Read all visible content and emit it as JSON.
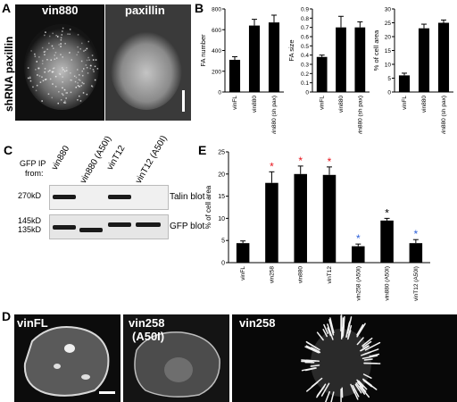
{
  "panels": {
    "A": {
      "letter": "A",
      "side_label": "shRNA paxillin",
      "image_labels": [
        "vin880",
        "paxillin"
      ]
    },
    "B": {
      "letter": "B"
    },
    "C": {
      "letter": "C",
      "ip_label_line1": "GFP IP",
      "ip_label_line2": "from:",
      "lanes": [
        "vin880",
        "vin880 (A50I)",
        "vinT12",
        "vinT12 (A50I)"
      ],
      "mw_markers": [
        "270kD",
        "145kD",
        "135kD"
      ],
      "blots": [
        "Talin blot",
        "GFP blot"
      ]
    },
    "D": {
      "letter": "D",
      "image_labels": [
        "vinFL",
        "vin258",
        "(A50I)",
        "vin258"
      ]
    },
    "E": {
      "letter": "E"
    }
  },
  "chart_data": [
    {
      "id": "B1",
      "type": "bar",
      "categories": [
        "vinFL",
        "vin880",
        "vin880 (sh pax)"
      ],
      "values": [
        310,
        640,
        670
      ],
      "errors": [
        30,
        60,
        70
      ],
      "ylabel": "FA number",
      "ylim": [
        0,
        800
      ],
      "yticks": [
        0,
        200,
        400,
        600,
        800
      ]
    },
    {
      "id": "B2",
      "type": "bar",
      "categories": [
        "vinFL",
        "vin880",
        "vin880 (sh pax)"
      ],
      "values": [
        0.38,
        0.7,
        0.7
      ],
      "errors": [
        0.02,
        0.12,
        0.06
      ],
      "ylabel": "FA size",
      "ylim": [
        0,
        0.9
      ],
      "yticks": [
        0,
        0.1,
        0.2,
        0.3,
        0.4,
        0.5,
        0.6,
        0.7,
        0.8,
        0.9
      ]
    },
    {
      "id": "B3",
      "type": "bar",
      "categories": [
        "vinFL",
        "vin880",
        "vin880 (sh pax)"
      ],
      "values": [
        6,
        23,
        25
      ],
      "errors": [
        0.8,
        1.5,
        1.0
      ],
      "ylabel": "% of cell area",
      "ylim": [
        0,
        30
      ],
      "yticks": [
        0,
        5,
        10,
        15,
        20,
        25,
        30
      ]
    },
    {
      "id": "E",
      "type": "bar",
      "categories": [
        "vinFL",
        "vin258",
        "vin880",
        "vinT12",
        "vin258 (A50I)",
        "vin880 (A50I)",
        "vinT12 (A50I)"
      ],
      "values": [
        4.4,
        18,
        20,
        19.8,
        3.7,
        9.5,
        4.4
      ],
      "errors": [
        0.5,
        2.5,
        1.8,
        1.8,
        0.5,
        0.5,
        0.8
      ],
      "markers": [
        "",
        "*",
        "*",
        "*",
        "*",
        "*",
        "*"
      ],
      "marker_colors": [
        "",
        "#e8141c",
        "#e8141c",
        "#e8141c",
        "#2b5fd9",
        "#000000",
        "#2b5fd9"
      ],
      "ylabel": "% of cell area",
      "ylim": [
        0,
        25
      ],
      "yticks": [
        0,
        5,
        10,
        15,
        20,
        25
      ]
    }
  ]
}
